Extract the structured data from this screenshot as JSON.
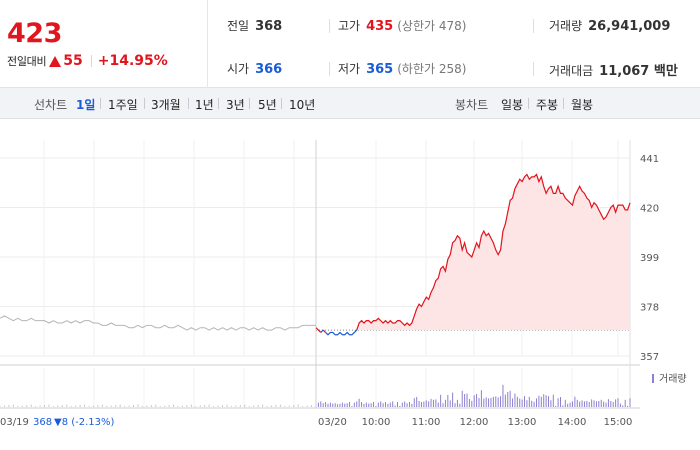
{
  "summary": {
    "price": "423",
    "change_label": "전일대비",
    "change_amount": "55",
    "change_percent": "+14.95%",
    "prev_close": {
      "label": "전일",
      "value": "368"
    },
    "high": {
      "label": "고가",
      "value": "435",
      "limit_label": "(상한가 478)"
    },
    "volume": {
      "label": "거래량",
      "value": "26,941,009"
    },
    "open": {
      "label": "시가",
      "value": "366"
    },
    "low": {
      "label": "저가",
      "value": "365",
      "limit_label": "(하한가 258)"
    },
    "turnover": {
      "label": "거래대금",
      "value": "11,067 백만"
    }
  },
  "tabs": {
    "line_label": "선차트",
    "line_items": [
      "1일",
      "1주일",
      "3개월",
      "1년",
      "3년",
      "5년",
      "10년"
    ],
    "active_index": 0,
    "candle_label": "봉차트",
    "candle_items": [
      "일봉",
      "주봉",
      "월봉"
    ]
  },
  "colors": {
    "up": "#e0151d",
    "down": "#1a5bd8",
    "prev_day": "#b5b5b5",
    "volume": "#8f7fcf"
  },
  "chart_data": {
    "type": "line",
    "y_ticks": [
      441,
      420,
      399,
      378,
      357
    ],
    "ylim": [
      357,
      441
    ],
    "reference_price": 368,
    "volume_legend": "거래량",
    "prev_day": {
      "date_label": "03/19",
      "close_label": "368",
      "change_label": "▼8 (-2.13%)",
      "values": [
        373,
        374,
        373,
        372,
        373,
        372,
        372,
        373,
        372,
        372,
        372,
        371,
        372,
        371,
        371,
        372,
        371,
        372,
        371,
        372,
        372,
        371,
        371,
        370,
        370,
        371,
        370,
        370,
        370,
        369,
        369,
        370,
        369,
        370,
        370,
        369,
        369,
        370,
        369,
        369,
        370,
        369,
        368,
        369,
        368,
        369,
        369,
        368,
        369,
        368,
        369,
        368,
        369,
        368,
        369,
        369,
        368,
        369,
        368,
        369,
        368,
        368,
        369,
        369,
        368,
        369,
        369,
        369,
        370,
        370,
        370,
        370
      ]
    },
    "today": {
      "date_label": "03/20",
      "times": [
        "10:00",
        "11:00",
        "12:00",
        "13:00",
        "14:00",
        "15:00"
      ],
      "values": [
        369,
        368,
        367,
        368,
        367,
        366,
        367,
        367,
        366,
        366,
        367,
        366,
        366,
        367,
        366,
        366,
        367,
        368,
        371,
        372,
        371,
        372,
        372,
        371,
        372,
        372,
        373,
        372,
        371,
        372,
        371,
        372,
        371,
        371,
        372,
        372,
        371,
        370,
        371,
        370,
        371,
        374,
        377,
        379,
        378,
        380,
        382,
        381,
        384,
        386,
        389,
        390,
        394,
        395,
        393,
        398,
        400,
        405,
        406,
        408,
        407,
        402,
        405,
        401,
        400,
        399,
        402,
        405,
        403,
        408,
        410,
        408,
        409,
        407,
        405,
        402,
        400,
        402,
        410,
        413,
        418,
        423,
        424,
        428,
        430,
        432,
        431,
        433,
        434,
        432,
        433,
        433,
        434,
        431,
        433,
        429,
        426,
        428,
        429,
        426,
        426,
        429,
        426,
        426,
        424,
        423,
        422,
        421,
        425,
        427,
        429,
        427,
        426,
        424,
        423,
        420,
        422,
        421,
        419,
        417,
        415,
        416,
        418,
        420,
        421,
        418,
        421,
        421,
        421,
        419,
        419,
        422
      ]
    }
  }
}
